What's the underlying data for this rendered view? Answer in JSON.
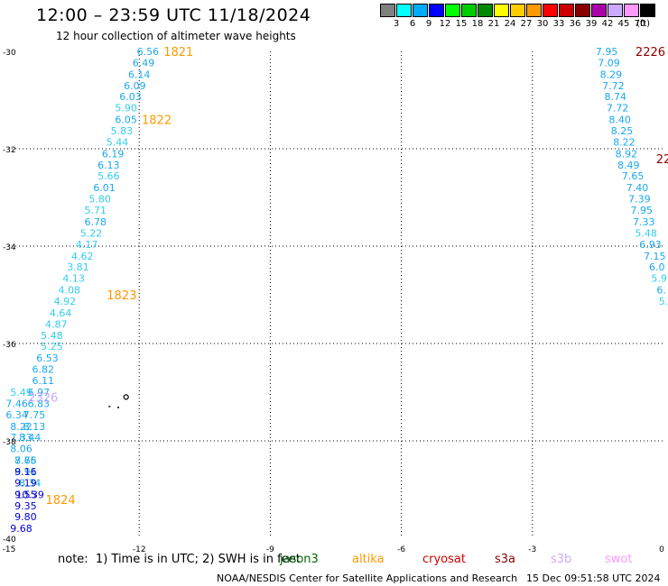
{
  "title": "12:00 – 23:59 UTC 11/18/2024",
  "subtitle": "12 hour collection of altimeter wave heights",
  "legend": {
    "unit": "(ft)",
    "bins": [
      {
        "label": "3",
        "color": "#808080"
      },
      {
        "label": "6",
        "color": "#00ffff"
      },
      {
        "label": "9",
        "color": "#00aaff"
      },
      {
        "label": "12",
        "color": "#0000ff"
      },
      {
        "label": "15",
        "color": "#00ff00"
      },
      {
        "label": "18",
        "color": "#00cc00"
      },
      {
        "label": "21",
        "color": "#008800"
      },
      {
        "label": "24",
        "color": "#ffff00"
      },
      {
        "label": "27",
        "color": "#ffcc00"
      },
      {
        "label": "30",
        "color": "#ff9900"
      },
      {
        "label": "33",
        "color": "#ff0000"
      },
      {
        "label": "36",
        "color": "#cc0000"
      },
      {
        "label": "39",
        "color": "#880000"
      },
      {
        "label": "42",
        "color": "#aa00aa"
      },
      {
        "label": "45",
        "color": "#ccaaff"
      },
      {
        "label": "70",
        "color": "#ff99ff"
      },
      {
        "label": "",
        "color": "#000000"
      }
    ]
  },
  "axes": {
    "lat_labels": [
      "-30",
      "-32",
      "-34",
      "-36",
      "-38",
      "-40"
    ],
    "lon_labels": [
      "-15",
      "-12",
      "-9",
      "-6",
      "-3",
      "0"
    ]
  },
  "map_data": {
    "lon_range": [
      -15,
      0
    ],
    "lat_range": [
      -40,
      -30
    ],
    "passes": [
      {
        "label": "1821",
        "satellite": "altika",
        "lon": -11.1,
        "lat": -30.0
      },
      {
        "label": "1822",
        "satellite": "altika",
        "lon": -11.6,
        "lat": -31.4
      },
      {
        "label": "1823",
        "satellite": "altika",
        "lon": -12.4,
        "lat": -35.0
      },
      {
        "label": "1824",
        "satellite": "altika",
        "lon": -13.8,
        "lat": -39.2
      },
      {
        "label": "2326",
        "satellite": "s3b",
        "lon": -14.2,
        "lat": -37.1
      },
      {
        "label": "2226",
        "satellite": "s3a",
        "lon": -0.3,
        "lat": -30.0
      },
      {
        "label": "22",
        "satellite": "s3a",
        "lon": 0.0,
        "lat": -32.2
      }
    ],
    "tracks": [
      {
        "name": "track-altika",
        "points": [
          [
            "6.56",
            -11.8,
            -30.0
          ],
          [
            "6.49",
            -11.9,
            -30.23
          ],
          [
            "6.14",
            -12.0,
            -30.47
          ],
          [
            "6.09",
            -12.1,
            -30.7
          ],
          [
            "6.03",
            -12.2,
            -30.93
          ],
          [
            "5.90",
            -12.3,
            -31.16
          ],
          [
            "6.05",
            -12.3,
            -31.4
          ],
          [
            "5.83",
            -12.4,
            -31.63
          ],
          [
            "5.44",
            -12.5,
            -31.86
          ],
          [
            "6.19",
            -12.6,
            -32.1
          ],
          [
            "6.13",
            -12.7,
            -32.33
          ],
          [
            "5.66",
            -12.7,
            -32.56
          ],
          [
            "6.01",
            -12.8,
            -32.8
          ],
          [
            "5.80",
            -12.9,
            -33.03
          ],
          [
            "5.71",
            -13.0,
            -33.26
          ],
          [
            "6.78",
            -13.0,
            -33.5
          ],
          [
            "5.22",
            -13.1,
            -33.73
          ],
          [
            "4.17",
            -13.2,
            -33.96
          ],
          [
            "4.62",
            -13.3,
            -34.2
          ],
          [
            "3.81",
            -13.4,
            -34.43
          ],
          [
            "4.13",
            -13.5,
            -34.66
          ],
          [
            "4.08",
            -13.6,
            -34.9
          ],
          [
            "4.92",
            -13.7,
            -35.13
          ],
          [
            "4.64",
            -13.8,
            -35.37
          ],
          [
            "4.87",
            -13.9,
            -35.6
          ],
          [
            "5.48",
            -14.0,
            -35.83
          ],
          [
            "5.25",
            -14.0,
            -36.06
          ],
          [
            "6.53",
            -14.1,
            -36.3
          ],
          [
            "6.82",
            -14.2,
            -36.53
          ],
          [
            "6.11",
            -14.2,
            -36.76
          ],
          [
            "6.97",
            -14.3,
            -37.0
          ],
          [
            "6.83",
            -14.3,
            -37.23
          ],
          [
            "7.75",
            -14.4,
            -37.46
          ],
          [
            "8.13",
            -14.4,
            -37.7
          ],
          [
            "8.44",
            -14.5,
            -37.93
          ],
          [
            "8.75",
            -14.6,
            -38.4
          ],
          [
            "8.91",
            -14.6,
            -38.63
          ],
          [
            "8.34",
            -14.5,
            -38.86
          ],
          [
            "10.39",
            -14.5,
            -39.1
          ]
        ]
      },
      {
        "name": "track-s3b",
        "points": [
          [
            "5.49",
            -14.7,
            -37.0
          ],
          [
            "7.46",
            -14.8,
            -37.23
          ],
          [
            "6.34",
            -14.8,
            -37.46
          ],
          [
            "8.22",
            -14.7,
            -37.7
          ],
          [
            "7.33",
            -14.7,
            -37.93
          ],
          [
            "8.06",
            -14.7,
            -38.16
          ],
          [
            "7.66",
            -14.6,
            -38.4
          ],
          [
            "9.16",
            -14.6,
            -38.63
          ],
          [
            "9.19",
            -14.6,
            -38.86
          ],
          [
            "9.55",
            -14.6,
            -39.1
          ],
          [
            "9.35",
            -14.6,
            -39.33
          ],
          [
            "9.80",
            -14.6,
            -39.56
          ],
          [
            "9.68",
            -14.7,
            -39.8
          ]
        ]
      },
      {
        "name": "track-s3a",
        "points": [
          [
            "7.95",
            -1.3,
            -30.0
          ],
          [
            "7.09",
            -1.25,
            -30.23
          ],
          [
            "8.29",
            -1.2,
            -30.47
          ],
          [
            "7.72",
            -1.15,
            -30.7
          ],
          [
            "8.74",
            -1.1,
            -30.93
          ],
          [
            "7.72",
            -1.05,
            -31.16
          ],
          [
            "8.40",
            -1.0,
            -31.4
          ],
          [
            "8.25",
            -0.95,
            -31.63
          ],
          [
            "8.22",
            -0.9,
            -31.86
          ],
          [
            "8.92",
            -0.85,
            -32.1
          ],
          [
            "8.49",
            -0.8,
            -32.33
          ],
          [
            "7.65",
            -0.7,
            -32.56
          ],
          [
            "7.40",
            -0.6,
            -32.8
          ],
          [
            "7.39",
            -0.55,
            -33.03
          ],
          [
            "7.95",
            -0.5,
            -33.26
          ],
          [
            "7.33",
            -0.45,
            -33.5
          ],
          [
            "5.48",
            -0.4,
            -33.73
          ],
          [
            "6.93",
            -0.3,
            -33.96
          ],
          [
            "7.15",
            -0.2,
            -34.2
          ],
          [
            "6.0",
            -0.15,
            -34.43
          ],
          [
            "5.9",
            -0.1,
            -34.66
          ],
          [
            "6.",
            -0.05,
            -34.9
          ],
          [
            "5.",
            0.0,
            -35.13
          ]
        ]
      }
    ],
    "islands": [
      {
        "lon": -12.3,
        "lat": -37.1
      },
      {
        "lon": -12.5,
        "lat": -37.3
      },
      {
        "lon": -12.7,
        "lat": -37.28
      }
    ]
  },
  "notes": "note:  1) Time is in UTC; 2) SWH is in feet",
  "satellites": [
    {
      "name": "jason3",
      "color": "#006600"
    },
    {
      "name": "altika",
      "color": "#ff9900"
    },
    {
      "name": "cryosat",
      "color": "#cc0000"
    },
    {
      "name": "s3a",
      "color": "#880000"
    },
    {
      "name": "s3b",
      "color": "#ccaaff"
    },
    {
      "name": "swot",
      "color": "#ff99ff"
    }
  ],
  "credit": "NOAA/NESDIS Center for Satellite Applications and Research",
  "stamp": "15 Dec 09:51:58 UTC 2024"
}
